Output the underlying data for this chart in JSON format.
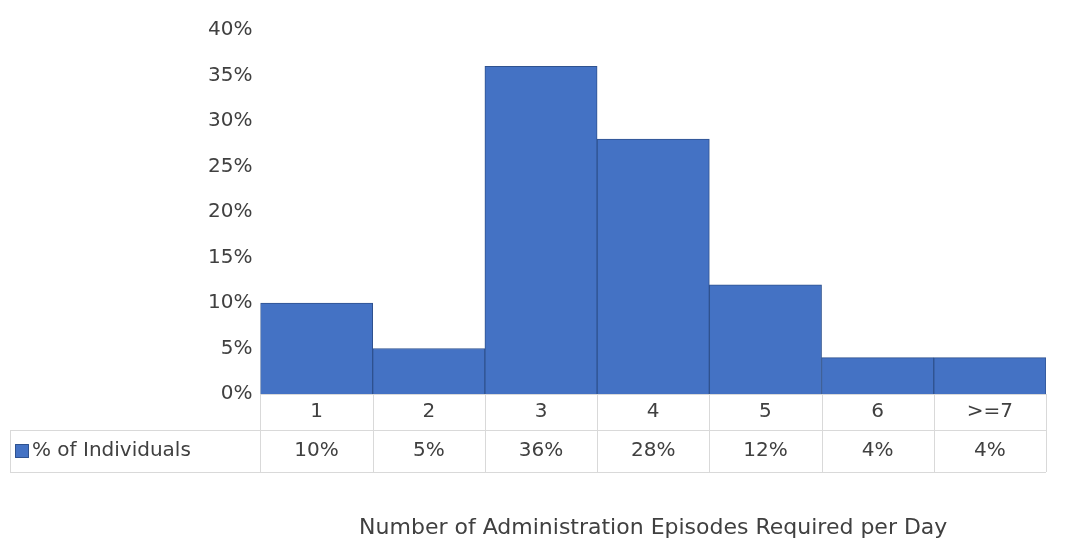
{
  "chart_data": {
    "type": "bar",
    "xlabel": "Number of Administration Episodes Required per Day",
    "categories": [
      "1",
      "2",
      "3",
      "4",
      "5",
      "6",
      ">=7"
    ],
    "series": [
      {
        "name": "% of Individuals",
        "color": "#4472c4",
        "values": [
          10,
          5,
          36,
          28,
          12,
          4,
          4
        ],
        "value_labels": [
          "10%",
          "5%",
          "36%",
          "28%",
          "12%",
          "4%",
          "4%"
        ]
      }
    ],
    "ylim": [
      0,
      40
    ],
    "yticks": [
      {
        "value": 0,
        "label": "0%"
      },
      {
        "value": 5,
        "label": "5%"
      },
      {
        "value": 10,
        "label": "10%"
      },
      {
        "value": 15,
        "label": "15%"
      },
      {
        "value": 20,
        "label": "20%"
      },
      {
        "value": 25,
        "label": "25%"
      },
      {
        "value": 30,
        "label": "30%"
      },
      {
        "value": 35,
        "label": "35%"
      },
      {
        "value": 40,
        "label": "40%"
      }
    ],
    "grid": false,
    "legend": "bottom left"
  }
}
